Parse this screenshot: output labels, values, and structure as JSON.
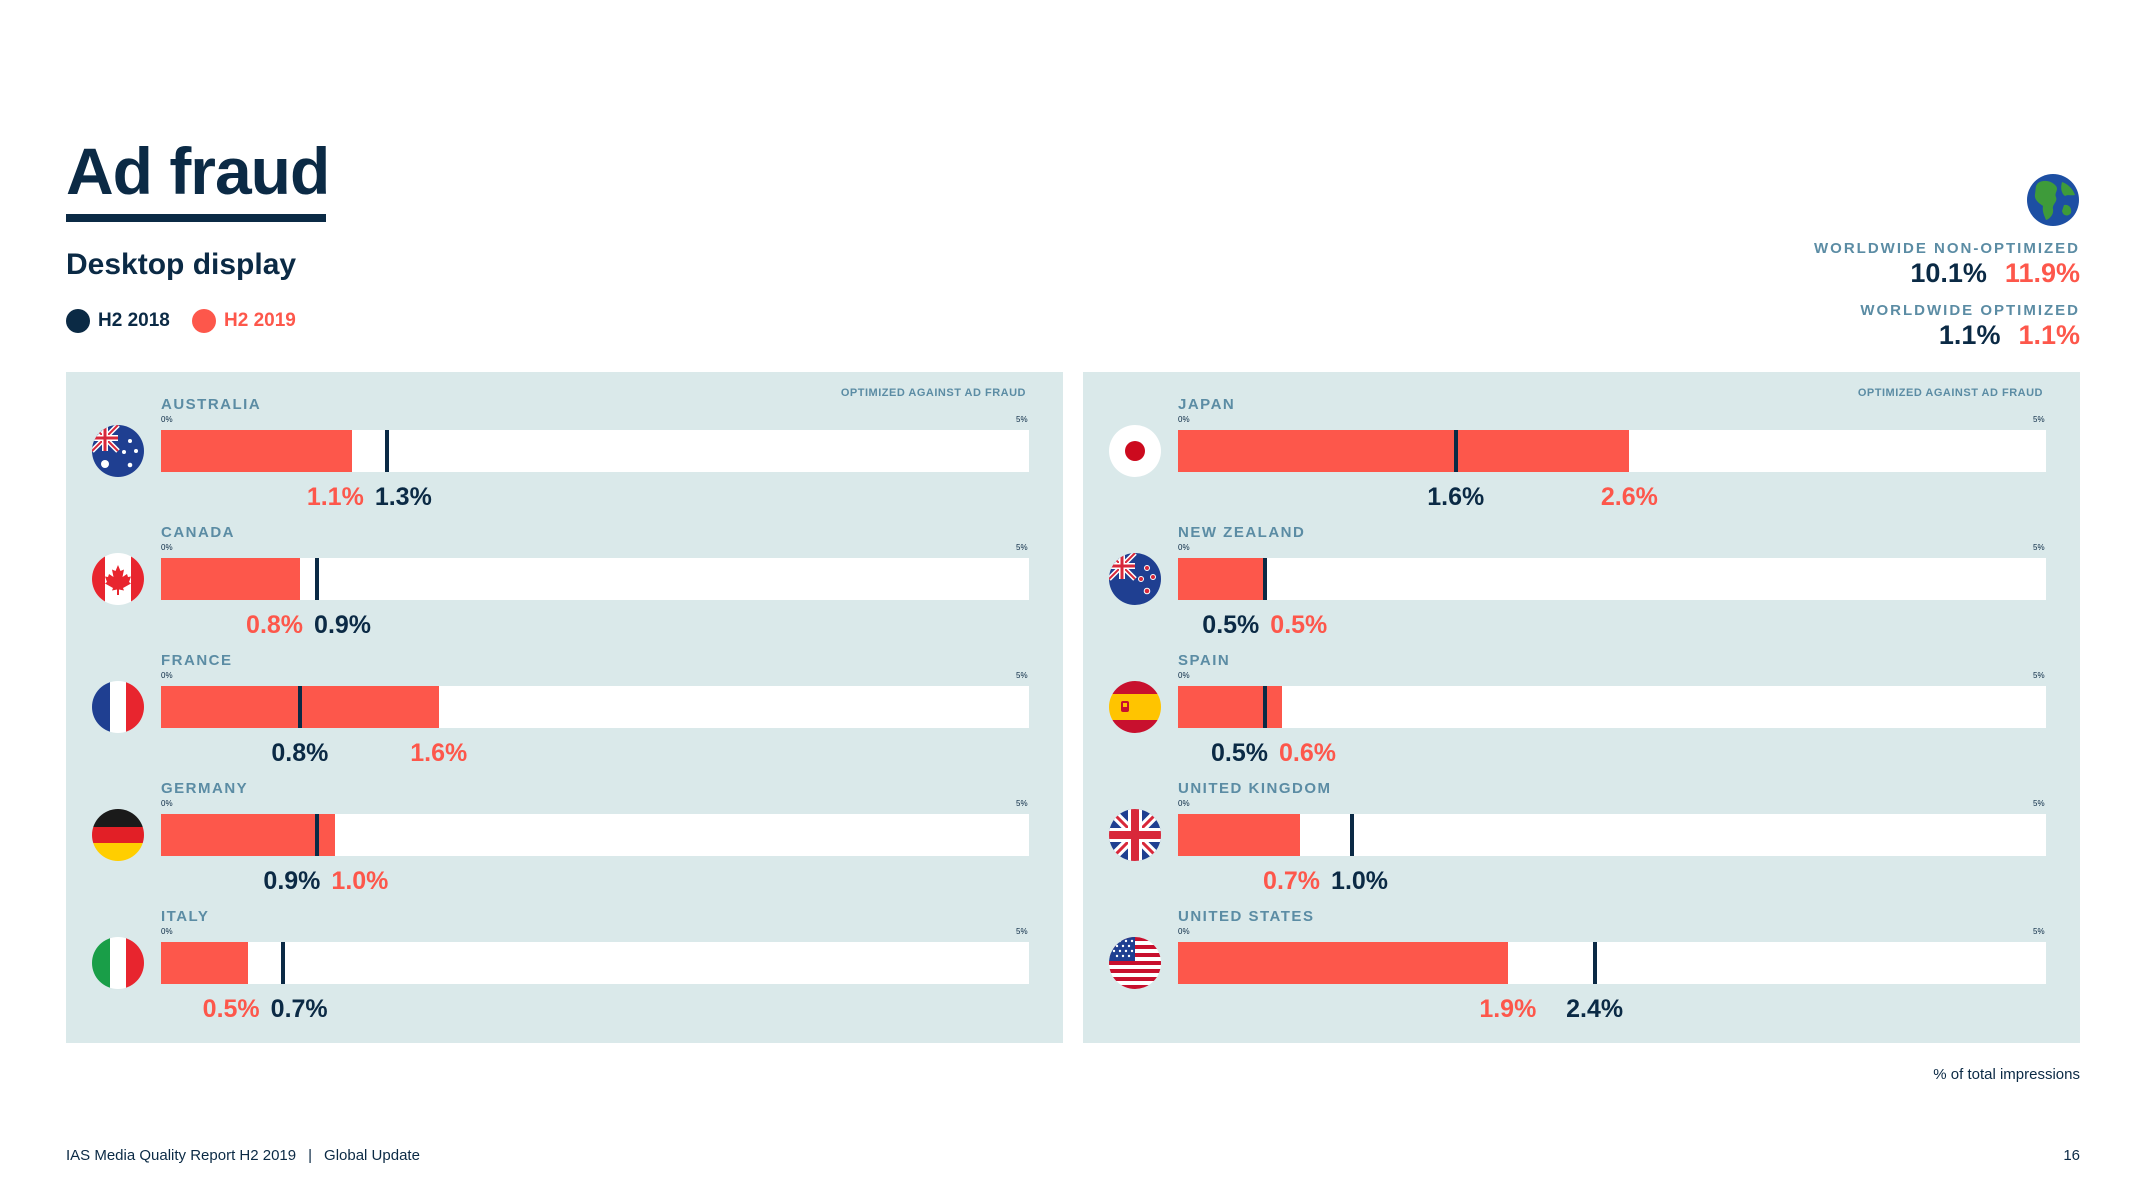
{
  "header": {
    "title": "Ad fraud",
    "subtitle": "Desktop display"
  },
  "legend": [
    {
      "label": "H2 2018",
      "color": "#0b2a45"
    },
    {
      "label": "H2 2019",
      "color": "#fd574b"
    }
  ],
  "worldwide": {
    "icon": "globe-icon",
    "non_optimized": {
      "label": "WORLDWIDE NON-OPTIMIZED",
      "h2_2018": "10.1%",
      "h2_2019": "11.9%"
    },
    "optimized": {
      "label": "WORLDWIDE OPTIMIZED",
      "h2_2018": "1.1%",
      "h2_2019": "1.1%"
    }
  },
  "panels": {
    "optimized_label": "OPTIMIZED AGAINST AD FRAUD",
    "tick_min": "0%",
    "tick_max": "5%"
  },
  "chart_data": {
    "type": "bar",
    "xlim": [
      0,
      5
    ],
    "unit": "%",
    "series": [
      {
        "name": "H2 2018",
        "color": "#0b2a45",
        "style": "marker"
      },
      {
        "name": "H2 2019",
        "color": "#fd574b",
        "style": "bar"
      }
    ],
    "countries": [
      {
        "name": "AUSTRALIA",
        "flag": "australia-flag-icon",
        "h2_2018": 1.3,
        "h2_2019": 1.1,
        "label_2018": "1.3%",
        "label_2019": "1.1%"
      },
      {
        "name": "CANADA",
        "flag": "canada-flag-icon",
        "h2_2018": 0.9,
        "h2_2019": 0.8,
        "label_2018": "0.9%",
        "label_2019": "0.8%"
      },
      {
        "name": "FRANCE",
        "flag": "france-flag-icon",
        "h2_2018": 0.8,
        "h2_2019": 1.6,
        "label_2018": "0.8%",
        "label_2019": "1.6%"
      },
      {
        "name": "GERMANY",
        "flag": "germany-flag-icon",
        "h2_2018": 0.9,
        "h2_2019": 1.0,
        "label_2018": "0.9%",
        "label_2019": "1.0%"
      },
      {
        "name": "ITALY",
        "flag": "italy-flag-icon",
        "h2_2018": 0.7,
        "h2_2019": 0.5,
        "label_2018": "0.7%",
        "label_2019": "0.5%"
      },
      {
        "name": "JAPAN",
        "flag": "japan-flag-icon",
        "h2_2018": 1.6,
        "h2_2019": 2.6,
        "label_2018": "1.6%",
        "label_2019": "2.6%"
      },
      {
        "name": "NEW ZEALAND",
        "flag": "new-zealand-flag-icon",
        "h2_2018": 0.5,
        "h2_2019": 0.5,
        "label_2018": "0.5%",
        "label_2019": "0.5%"
      },
      {
        "name": "SPAIN",
        "flag": "spain-flag-icon",
        "h2_2018": 0.5,
        "h2_2019": 0.6,
        "label_2018": "0.5%",
        "label_2019": "0.6%"
      },
      {
        "name": "UNITED KINGDOM",
        "flag": "united-kingdom-flag-icon",
        "h2_2018": 1.0,
        "h2_2019": 0.7,
        "label_2018": "1.0%",
        "label_2019": "0.7%"
      },
      {
        "name": "UNITED STATES",
        "flag": "united-states-flag-icon",
        "h2_2018": 2.4,
        "h2_2019": 1.9,
        "label_2018": "2.4%",
        "label_2019": "1.9%"
      }
    ]
  },
  "note": "% of total impressions",
  "footer": {
    "report": "IAS Media Quality Report H2 2019",
    "separator": "|",
    "section": "Global Update",
    "page": "16"
  }
}
